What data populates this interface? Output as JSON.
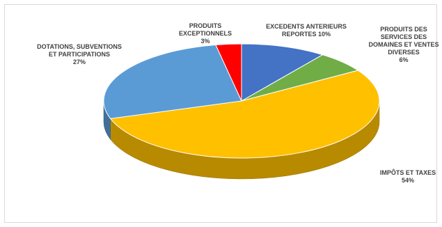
{
  "chart_data": {
    "type": "pie",
    "title": "",
    "categories": [
      "EXCEDENTS ANTERIEURS REPORTES",
      "PRODUITS DES SERVICES DES DOMAINES ET VENTES DIVERSES",
      "IMPÔTS ET TAXES",
      "DOTATIONS, SUBVENTIONS ET PARTICIPATIONS",
      "PRODUITS EXCEPTIONNELS"
    ],
    "values": [
      10,
      6,
      54,
      27,
      3
    ],
    "colors": [
      "#4472c4",
      "#70ad47",
      "#ffc000",
      "#5b9bd5",
      "#ff0000"
    ],
    "labels": [
      {
        "lines": [
          "EXCEDENTS ANTERIEURS",
          "REPORTES 10%"
        ]
      },
      {
        "lines": [
          "PRODUITS DES",
          "SERVICES DES",
          "DOMAINES ET VENTES",
          "DIVERSES",
          "6%"
        ]
      },
      {
        "lines": [
          "IMPÔTS ET TAXES",
          "54%"
        ]
      },
      {
        "lines": [
          "DOTATIONS, SUBVENTIONS",
          "ET PARTICIPATIONS",
          "27%"
        ]
      },
      {
        "lines": [
          "PRODUITS",
          "EXCEPTIONNELS",
          "3%"
        ]
      }
    ]
  }
}
